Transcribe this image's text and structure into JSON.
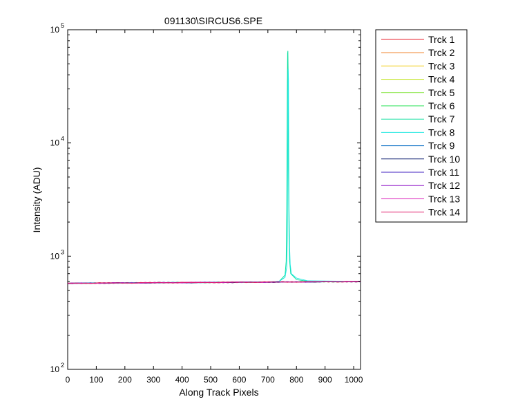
{
  "chart_data": {
    "type": "line",
    "title": "091130\\SIRCUS6.SPE",
    "xlabel": "Along Track Pixels",
    "ylabel": "Intensity (ADU)",
    "xlim": [
      0,
      1024
    ],
    "ylim": [
      100,
      100000
    ],
    "y_scale": "log",
    "grid": false,
    "legend_position": "outside-right",
    "x_ticks": [
      "0",
      "100",
      "200",
      "300",
      "400",
      "500",
      "600",
      "700",
      "800",
      "900",
      "1000"
    ],
    "y_ticks": [
      {
        "base": "10",
        "exp": "2"
      },
      {
        "base": "10",
        "exp": "3"
      },
      {
        "base": "10",
        "exp": "4"
      },
      {
        "base": "10",
        "exp": "5"
      }
    ],
    "baseline": {
      "x": [
        0,
        100,
        200,
        300,
        400,
        500,
        600,
        700,
        800,
        900,
        1024
      ],
      "y": [
        575,
        578,
        580,
        582,
        584,
        586,
        588,
        590,
        592,
        594,
        596
      ]
    },
    "series": [
      {
        "name": "Trck 1",
        "color": "#e8202e",
        "baseline": true
      },
      {
        "name": "Trck 2",
        "color": "#f07818",
        "baseline": true
      },
      {
        "name": "Trck 3",
        "color": "#f0c800",
        "baseline": true
      },
      {
        "name": "Trck 4",
        "color": "#b8e000",
        "baseline": true
      },
      {
        "name": "Trck 5",
        "color": "#70e020",
        "baseline": true
      },
      {
        "name": "Trck 6",
        "color": "#20e050",
        "baseline": true
      },
      {
        "name": "Trck 7",
        "color": "#10e0a0",
        "baseline": true,
        "peak": {
          "x": [
            640,
            700,
            740,
            760,
            764,
            766,
            767,
            768,
            769,
            770,
            771,
            772,
            774,
            776,
            780,
            800,
            840,
            1024
          ],
          "y": [
            590,
            592,
            600,
            680,
            900,
            2500,
            8000,
            30000,
            62000,
            65000,
            40000,
            6000,
            1500,
            900,
            700,
            620,
            600,
            596
          ]
        }
      },
      {
        "name": "Trck 8",
        "color": "#20e8e0",
        "baseline": true,
        "peak": {
          "x": [
            700,
            740,
            760,
            766,
            768,
            769,
            770,
            771,
            772,
            773,
            774,
            776,
            778,
            782,
            800,
            840,
            1024
          ],
          "y": [
            592,
            600,
            650,
            800,
            1400,
            6000,
            30000,
            45000,
            36000,
            8000,
            2700,
            1200,
            850,
            700,
            640,
            605,
            598
          ]
        }
      },
      {
        "name": "Trck 9",
        "color": "#1a78c8",
        "baseline": true
      },
      {
        "name": "Trck 10",
        "color": "#102070",
        "baseline": true
      },
      {
        "name": "Trck 11",
        "color": "#4020c0",
        "baseline": true
      },
      {
        "name": "Trck 12",
        "color": "#9018c8",
        "baseline": true
      },
      {
        "name": "Trck 13",
        "color": "#d818b8",
        "baseline": true
      },
      {
        "name": "Trck 14",
        "color": "#e01868",
        "baseline": true
      }
    ]
  }
}
